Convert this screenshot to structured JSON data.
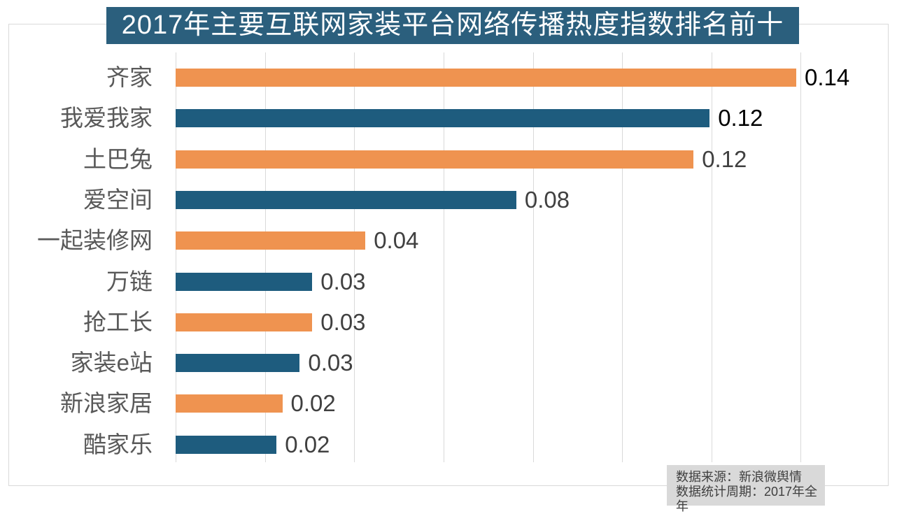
{
  "title": "2017年主要互联网家装平台网络传播热度指数排名前十",
  "chart_data": {
    "type": "bar",
    "orientation": "horizontal",
    "title": "2017年主要互联网家装平台网络传播热度指数排名前十",
    "xlabel": "",
    "ylabel": "",
    "categories": [
      "齐家",
      "我爱我家",
      "土巴兔",
      "爱空间",
      "一起装修网",
      "万链",
      "抢工长",
      "家装e站",
      "新浪家居",
      "酷家乐"
    ],
    "values": [
      0.14,
      0.12,
      0.12,
      0.08,
      0.04,
      0.03,
      0.03,
      0.03,
      0.02,
      0.02
    ],
    "value_labels": [
      "0.14",
      "0.12",
      "0.12",
      "0.08",
      "0.04",
      "0.03",
      "0.03",
      "0.03",
      "0.02",
      "0.02"
    ],
    "bar_lengths_estimated": [
      0.139,
      0.1196,
      0.116,
      0.0763,
      0.0425,
      0.0306,
      0.0306,
      0.0278,
      0.0239,
      0.0226
    ],
    "xlim": [
      0,
      0.16
    ],
    "gridline_interval": 0.02,
    "grid": true,
    "legend": false,
    "bar_color_pattern": [
      "#EF9350",
      "#1E5C7E"
    ],
    "emphasized_value_label_indices": [
      0,
      1
    ]
  },
  "source": {
    "line1": "数据来源：新浪微舆情",
    "line2": "数据统计周期：2017年全年"
  },
  "colors": {
    "title_bg": "#2B5F7D",
    "title_text": "#FFFFFF",
    "orange_bar": "#EF9350",
    "blue_bar": "#1E5C7E",
    "gridline": "#D9D9D9",
    "border": "#D9D9D9",
    "category_label": "#595959",
    "value_label": "#404040",
    "value_label_emphasis": "#000000",
    "source_bg": "#D9D9D9",
    "source_text": "#3F3F3F"
  }
}
